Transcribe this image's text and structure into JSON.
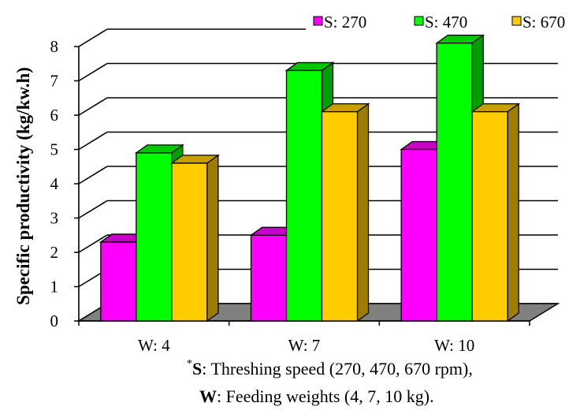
{
  "chart_data": {
    "type": "bar",
    "ylabel": "Specific productivity (kg/kw.h)",
    "xlabel": "",
    "ylim": [
      0,
      8
    ],
    "yticks": [
      0,
      1,
      2,
      3,
      4,
      5,
      6,
      7,
      8
    ],
    "categories": [
      "W: 4",
      "W: 7",
      "W: 10"
    ],
    "series": [
      {
        "name": "S: 270",
        "color": "#ff00ff",
        "values": [
          2.3,
          2.5,
          5.0
        ]
      },
      {
        "name": "S: 470",
        "color": "#00ff00",
        "values": [
          4.9,
          7.3,
          8.1
        ]
      },
      {
        "name": "S: 670",
        "color": "#ffcc00",
        "values": [
          4.6,
          6.1,
          6.1
        ]
      }
    ],
    "grid": true,
    "legend_position": "top-right",
    "style": "3d-clustered"
  },
  "footnote": {
    "line1_star": "*",
    "line1_key": "S",
    "line1_text": ": Threshing speed (270, 470, 670 rpm),",
    "line2_key": "W",
    "line2_text": ": Feeding weights (4, 7, 10 kg)."
  }
}
